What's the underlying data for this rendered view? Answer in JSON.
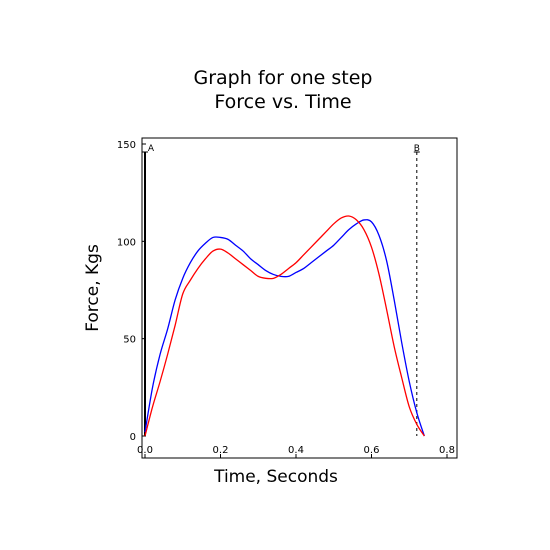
{
  "chart_data": {
    "type": "line",
    "title": [
      "Graph for one step",
      "Force vs. Time"
    ],
    "xlabel": "Time, Seconds",
    "ylabel": "Force, Kgs",
    "xlim": [
      0,
      0.8
    ],
    "ylim": [
      0,
      150
    ],
    "xticks": [
      "0.0",
      "0.2",
      "0.4",
      "0.6",
      "0.8"
    ],
    "yticks": [
      "0",
      "50",
      "100",
      "150"
    ],
    "grid": false,
    "markers": [
      {
        "label": "A",
        "x": 0.0,
        "style": "solid",
        "color": "#000000"
      },
      {
        "label": "B",
        "x": 0.72,
        "style": "dashed",
        "color": "#000000"
      }
    ],
    "series": [
      {
        "color": "#0000ff",
        "x": [
          0.0,
          0.02,
          0.04,
          0.06,
          0.08,
          0.1,
          0.12,
          0.14,
          0.16,
          0.18,
          0.2,
          0.22,
          0.24,
          0.26,
          0.28,
          0.3,
          0.32,
          0.34,
          0.36,
          0.38,
          0.4,
          0.42,
          0.44,
          0.46,
          0.48,
          0.5,
          0.52,
          0.54,
          0.56,
          0.58,
          0.6,
          0.62,
          0.64,
          0.66,
          0.68,
          0.7,
          0.72,
          0.74
        ],
        "y": [
          2,
          25,
          42,
          55,
          70,
          81,
          89,
          95,
          99,
          102,
          102,
          101,
          98,
          95,
          91,
          88,
          85,
          83,
          82,
          82,
          84,
          86,
          89,
          92,
          95,
          98,
          102,
          106,
          109,
          111,
          110,
          103,
          90,
          70,
          48,
          28,
          12,
          0
        ]
      },
      {
        "color": "#ff0000",
        "x": [
          0.0,
          0.02,
          0.04,
          0.06,
          0.08,
          0.1,
          0.12,
          0.14,
          0.16,
          0.18,
          0.2,
          0.22,
          0.24,
          0.26,
          0.28,
          0.3,
          0.32,
          0.34,
          0.36,
          0.38,
          0.4,
          0.42,
          0.44,
          0.46,
          0.48,
          0.5,
          0.52,
          0.54,
          0.56,
          0.58,
          0.6,
          0.62,
          0.64,
          0.66,
          0.68,
          0.7,
          0.72,
          0.74
        ],
        "y": [
          0,
          15,
          28,
          42,
          57,
          73,
          80,
          86,
          91,
          95,
          96,
          94,
          91,
          88,
          85,
          82,
          81,
          81,
          83,
          86,
          89,
          93,
          97,
          101,
          105,
          109,
          112,
          113,
          111,
          106,
          97,
          83,
          65,
          46,
          30,
          15,
          6,
          0
        ]
      }
    ]
  }
}
